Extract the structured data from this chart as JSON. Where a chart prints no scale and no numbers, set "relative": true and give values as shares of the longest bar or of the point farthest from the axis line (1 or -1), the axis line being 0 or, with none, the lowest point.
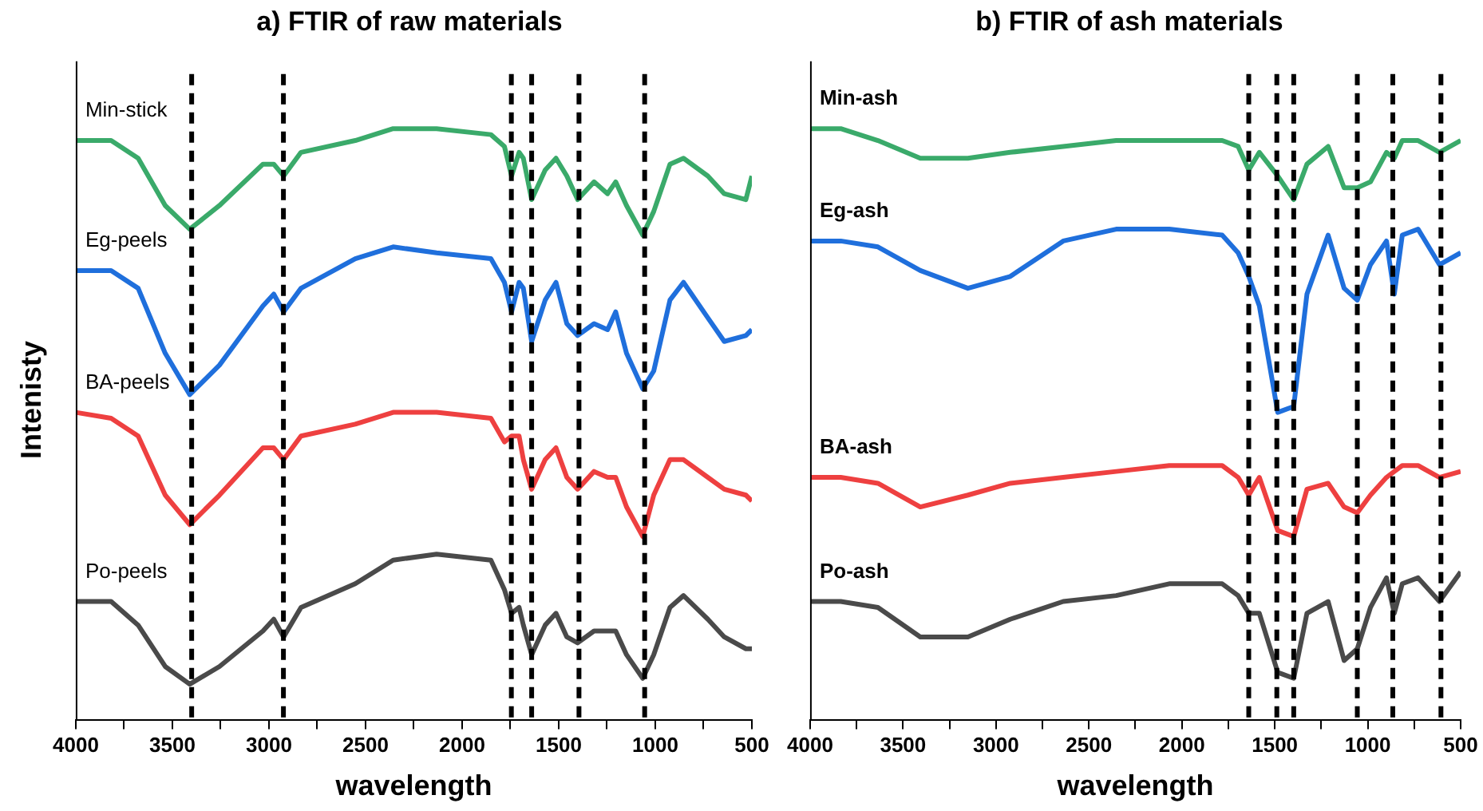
{
  "chart_data": [
    {
      "type": "line",
      "title": "a) FTIR of raw materials",
      "xlabel": "wavelength",
      "ylabel": "Intenisty",
      "relative": true,
      "grid": false,
      "legend": false,
      "marker": "none",
      "line_style": "solid",
      "x": [
        4000,
        3817,
        3677,
        3537,
        3410,
        3256,
        3031,
        2975,
        2924,
        2834,
        2553,
        2357,
        2132,
        1851,
        1781,
        1744,
        1705,
        1683,
        1640,
        1570,
        1514,
        1458,
        1402,
        1317,
        1247,
        1205,
        1149,
        1065,
        1008,
        924,
        854,
        728,
        643,
        531,
        500
      ],
      "xlim": [
        4000,
        500
      ],
      "xticks": [
        4000,
        {
          "value": 3750,
          "label": null
        },
        3500,
        {
          "value": 3250,
          "label": null
        },
        3000,
        {
          "value": 2750,
          "label": null
        },
        2500,
        {
          "value": 2250,
          "label": null
        },
        2000,
        {
          "value": 1750,
          "label": null
        },
        1500,
        {
          "value": 1250,
          "label": null
        },
        1000,
        {
          "value": 750,
          "label": null
        },
        500
      ],
      "series": [
        {
          "name": "Min-stick",
          "color": "#3aaa6a",
          "values": [
            0.98,
            0.98,
            0.95,
            0.87,
            0.83,
            0.87,
            0.94,
            0.94,
            0.92,
            0.96,
            0.98,
            1.0,
            1.0,
            0.99,
            0.97,
            0.92,
            0.96,
            0.95,
            0.88,
            0.93,
            0.95,
            0.92,
            0.88,
            0.91,
            0.89,
            0.91,
            0.87,
            0.82,
            0.86,
            0.94,
            0.95,
            0.92,
            0.89,
            0.88,
            0.92
          ]
        },
        {
          "name": "Eg-peels",
          "color": "#1f6fdc",
          "values": [
            0.76,
            0.76,
            0.73,
            0.62,
            0.55,
            0.6,
            0.7,
            0.72,
            0.69,
            0.73,
            0.78,
            0.8,
            0.79,
            0.78,
            0.74,
            0.69,
            0.74,
            0.73,
            0.64,
            0.71,
            0.74,
            0.67,
            0.65,
            0.67,
            0.66,
            0.69,
            0.62,
            0.56,
            0.59,
            0.71,
            0.74,
            0.68,
            0.64,
            0.65,
            0.66
          ]
        },
        {
          "name": "BA-peels",
          "color": "#ee4040",
          "values": [
            0.52,
            0.51,
            0.48,
            0.38,
            0.33,
            0.38,
            0.46,
            0.46,
            0.44,
            0.48,
            0.5,
            0.52,
            0.52,
            0.51,
            0.47,
            0.48,
            0.48,
            0.44,
            0.39,
            0.44,
            0.46,
            0.41,
            0.39,
            0.42,
            0.41,
            0.41,
            0.36,
            0.31,
            0.38,
            0.44,
            0.44,
            0.41,
            0.39,
            0.38,
            0.37
          ]
        },
        {
          "name": "Po-peels",
          "color": "#4a4a4a",
          "values": [
            0.2,
            0.2,
            0.16,
            0.09,
            0.06,
            0.09,
            0.15,
            0.17,
            0.14,
            0.19,
            0.23,
            0.27,
            0.28,
            0.27,
            0.22,
            0.18,
            0.19,
            0.16,
            0.11,
            0.16,
            0.18,
            0.14,
            0.13,
            0.15,
            0.15,
            0.15,
            0.11,
            0.07,
            0.11,
            0.19,
            0.21,
            0.17,
            0.14,
            0.12,
            0.12
          ]
        }
      ],
      "ref_lines": [
        {
          "axis": "x",
          "value": 3400,
          "color": "#000000",
          "line_style": "dashed"
        },
        {
          "axis": "x",
          "value": 2925,
          "color": "#000000",
          "line_style": "dashed"
        },
        {
          "axis": "x",
          "value": 1745,
          "color": "#000000",
          "line_style": "dashed"
        },
        {
          "axis": "x",
          "value": 1640,
          "color": "#000000",
          "line_style": "dashed"
        },
        {
          "axis": "x",
          "value": 1395,
          "color": "#000000",
          "line_style": "dashed"
        },
        {
          "axis": "x",
          "value": 1055,
          "color": "#000000",
          "line_style": "dashed"
        }
      ]
    },
    {
      "type": "line",
      "title": "b) FTIR of ash materials",
      "xlabel": "wavelength",
      "relative": true,
      "grid": false,
      "legend": false,
      "marker": "none",
      "line_style": "solid",
      "x": [
        4000,
        3835,
        3635,
        3407,
        3151,
        2923,
        2638,
        2353,
        2068,
        1783,
        1697,
        1640,
        1583,
        1484,
        1398,
        1327,
        1213,
        1127,
        1056,
        985,
        899,
        857,
        814,
        729,
        614,
        500
      ],
      "xlim": [
        4000,
        500
      ],
      "xticks": [
        4000,
        {
          "value": 3750,
          "label": null
        },
        3500,
        {
          "value": 3250,
          "label": null
        },
        3000,
        {
          "value": 2750,
          "label": null
        },
        2500,
        {
          "value": 2250,
          "label": null
        },
        2000,
        {
          "value": 1750,
          "label": null
        },
        1500,
        {
          "value": 1250,
          "label": null
        },
        1000,
        {
          "value": 750,
          "label": null
        },
        500
      ],
      "series": [
        {
          "name": "Min-ash",
          "color": "#3aaa6a",
          "values": [
            1.0,
            1.0,
            0.98,
            0.95,
            0.95,
            0.96,
            0.97,
            0.98,
            0.98,
            0.98,
            0.97,
            0.93,
            0.96,
            0.92,
            0.88,
            0.94,
            0.97,
            0.9,
            0.9,
            0.91,
            0.96,
            0.95,
            0.98,
            0.98,
            0.96,
            0.98
          ]
        },
        {
          "name": "Eg-ash",
          "color": "#1f6fdc",
          "values": [
            0.81,
            0.81,
            0.8,
            0.76,
            0.73,
            0.75,
            0.81,
            0.83,
            0.83,
            0.82,
            0.79,
            0.75,
            0.7,
            0.52,
            0.53,
            0.72,
            0.82,
            0.73,
            0.71,
            0.77,
            0.81,
            0.72,
            0.82,
            0.83,
            0.77,
            0.79
          ]
        },
        {
          "name": "BA-ash",
          "color": "#ee4040",
          "values": [
            0.41,
            0.41,
            0.4,
            0.36,
            0.38,
            0.4,
            0.41,
            0.42,
            0.43,
            0.43,
            0.41,
            0.38,
            0.41,
            0.32,
            0.31,
            0.39,
            0.4,
            0.36,
            0.35,
            0.38,
            0.41,
            0.42,
            0.43,
            0.43,
            0.41,
            0.42
          ]
        },
        {
          "name": "Po-ash",
          "color": "#4a4a4a",
          "values": [
            0.2,
            0.2,
            0.19,
            0.14,
            0.14,
            0.17,
            0.2,
            0.21,
            0.23,
            0.23,
            0.21,
            0.18,
            0.18,
            0.08,
            0.07,
            0.18,
            0.2,
            0.1,
            0.12,
            0.19,
            0.24,
            0.18,
            0.23,
            0.24,
            0.2,
            0.25
          ]
        }
      ],
      "ref_lines": [
        {
          "axis": "x",
          "value": 1640,
          "color": "#000000",
          "line_style": "dashed"
        },
        {
          "axis": "x",
          "value": 1489,
          "color": "#000000",
          "line_style": "dashed"
        },
        {
          "axis": "x",
          "value": 1398,
          "color": "#000000",
          "line_style": "dashed"
        },
        {
          "axis": "x",
          "value": 1056,
          "color": "#000000",
          "line_style": "dashed"
        },
        {
          "axis": "x",
          "value": 865,
          "color": "#000000",
          "line_style": "dashed"
        },
        {
          "axis": "x",
          "value": 606,
          "color": "#000000",
          "line_style": "dashed"
        }
      ]
    }
  ]
}
